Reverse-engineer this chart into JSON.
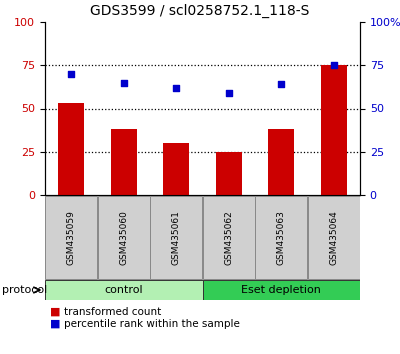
{
  "title": "GDS3599 / scl0258752.1_118-S",
  "samples": [
    "GSM435059",
    "GSM435060",
    "GSM435061",
    "GSM435062",
    "GSM435063",
    "GSM435064"
  ],
  "bar_values": [
    53,
    38,
    30,
    25,
    38,
    75
  ],
  "dot_values": [
    70,
    65,
    62,
    59,
    64,
    75
  ],
  "bar_color": "#cc0000",
  "dot_color": "#0000cc",
  "ylim": [
    0,
    100
  ],
  "yticks": [
    0,
    25,
    50,
    75,
    100
  ],
  "protocol_groups": [
    {
      "label": "control",
      "start": 0,
      "end": 3,
      "color": "#b3f0b3"
    },
    {
      "label": "Eset depletion",
      "start": 3,
      "end": 6,
      "color": "#33cc55"
    }
  ],
  "protocol_label": "protocol",
  "legend_items": [
    {
      "label": "transformed count",
      "color": "#cc0000"
    },
    {
      "label": "percentile rank within the sample",
      "color": "#0000cc"
    }
  ],
  "gridline_style": "dotted",
  "sample_box_color": "#d0d0d0",
  "title_fontsize": 10,
  "tick_fontsize": 8,
  "label_fontsize": 7.5,
  "legend_fontsize": 7.5
}
